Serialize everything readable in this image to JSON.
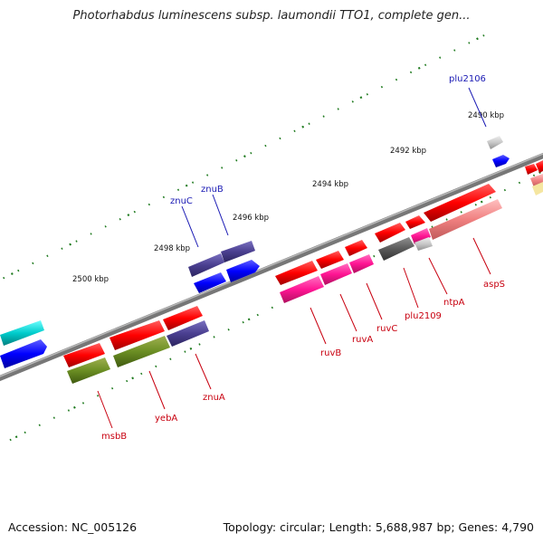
{
  "title": "Photorhabdus luminescens subsp. laumondii TTO1, complete gen...",
  "footer": {
    "accession": "Accession: NC_005126",
    "summary": "Topology: circular; Length: 5,688,987 bp; Genes: 4,790"
  },
  "colors": {
    "backbone": "#8a8a8a",
    "ticks": "#1e7a1e",
    "label_forward": "#c8000f",
    "label_reverse": "#1a1ab4"
  },
  "scale_labels": [
    "2490 kbp",
    "2492 kbp",
    "2494 kbp",
    "2496 kbp",
    "2498 kbp",
    "2500 kbp"
  ],
  "gene_labels": [
    {
      "text": "plu2106",
      "strand": "reverse"
    },
    {
      "text": "znuC",
      "strand": "reverse"
    },
    {
      "text": "znuB",
      "strand": "reverse"
    },
    {
      "text": "aspS",
      "strand": "forward"
    },
    {
      "text": "ntpA",
      "strand": "forward"
    },
    {
      "text": "plu2109",
      "strand": "forward"
    },
    {
      "text": "ruvC",
      "strand": "forward"
    },
    {
      "text": "ruvA",
      "strand": "forward"
    },
    {
      "text": "ruvB",
      "strand": "forward"
    },
    {
      "text": "znuA",
      "strand": "forward"
    },
    {
      "text": "yebA",
      "strand": "forward"
    },
    {
      "text": "msbB",
      "strand": "forward"
    }
  ]
}
